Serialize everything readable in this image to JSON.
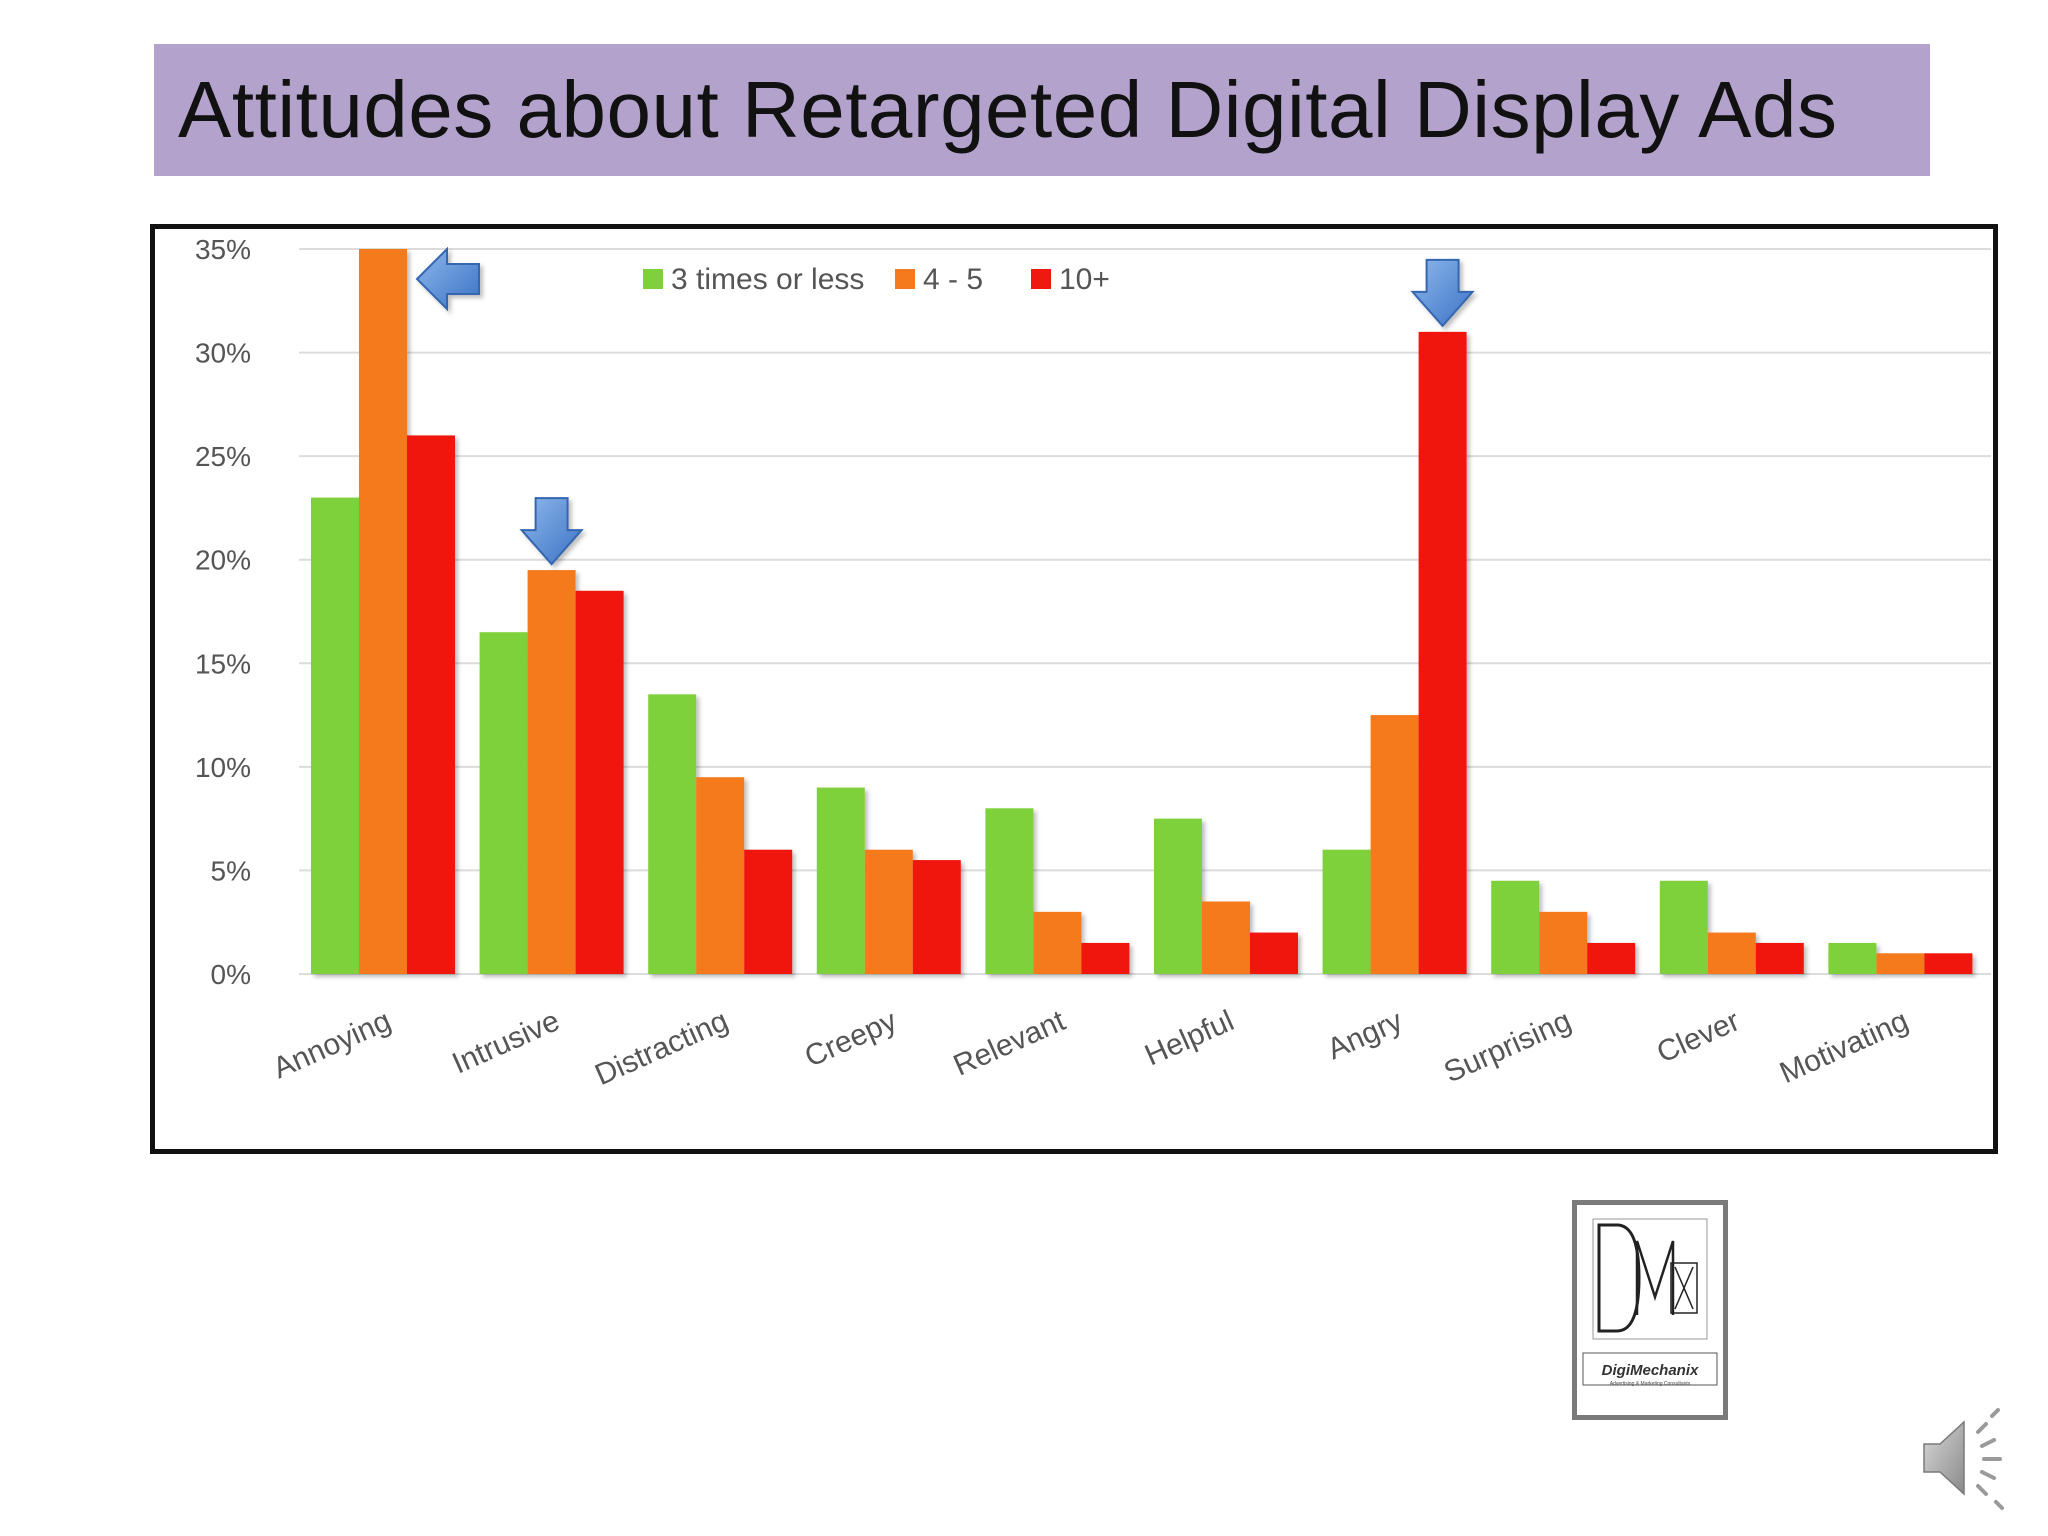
{
  "slide": {
    "title": "Attitudes about Retargeted Digital Display Ads"
  },
  "logo": {
    "mark_icon": "dmx-monogram-logo",
    "text": "DigiMechanix",
    "subtext": "Advertising & Marketing Consultants"
  },
  "speaker_icon": "speaker-audio-icon",
  "colors": {
    "title_background": "#b3a2cc",
    "series_1": "#7fd13b",
    "series_2": "#f57a1e",
    "series_3": "#f0190f",
    "arrow": "#4a86d4"
  },
  "chart_data": {
    "type": "bar",
    "title": "",
    "xlabel": "",
    "ylabel": "",
    "ylim": [
      0,
      35
    ],
    "y_ticks": [
      0,
      5,
      10,
      15,
      20,
      25,
      30,
      35
    ],
    "y_tick_labels": [
      "0%",
      "5%",
      "10%",
      "15%",
      "20%",
      "25%",
      "30%",
      "35%"
    ],
    "grid": true,
    "legend_position": "top-center",
    "categories": [
      "Annoying",
      "Intrusive",
      "Distracting",
      "Creepy",
      "Relevant",
      "Helpful",
      "Angry",
      "Surprising",
      "Clever",
      "Motivating"
    ],
    "series": [
      {
        "name": "3 times or less",
        "values": [
          23,
          16.5,
          13.5,
          9,
          8,
          7.5,
          6,
          4.5,
          4.5,
          1.5
        ]
      },
      {
        "name": "4 - 5",
        "values": [
          35,
          19.5,
          9.5,
          6,
          3,
          3.5,
          12.5,
          3,
          2,
          1
        ]
      },
      {
        "name": "10+",
        "values": [
          26,
          18.5,
          6,
          5.5,
          1.5,
          2,
          31,
          1.5,
          1.5,
          1
        ]
      }
    ],
    "annotations": [
      {
        "type": "arrow-left",
        "category": "Annoying",
        "series": 1
      },
      {
        "type": "arrow-down",
        "category": "Intrusive",
        "series": 1
      },
      {
        "type": "arrow-down",
        "category": "Angry",
        "series": 2
      }
    ]
  }
}
